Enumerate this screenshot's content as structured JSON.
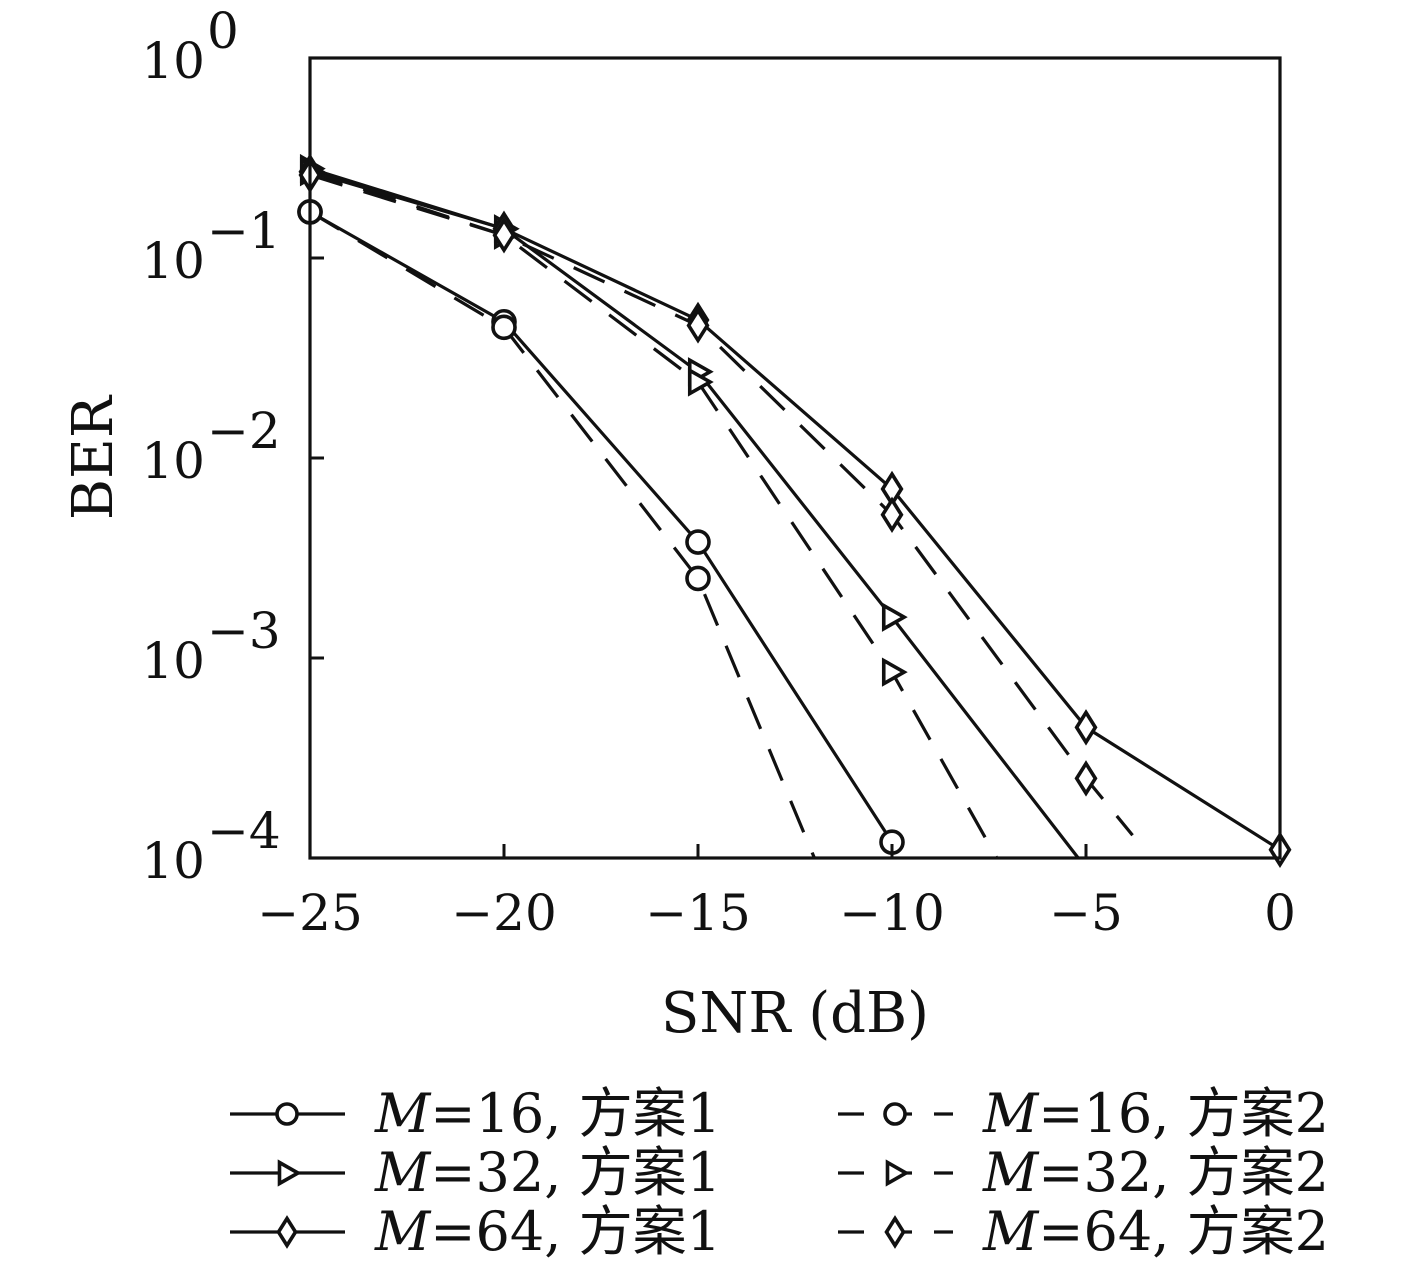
{
  "chart_data": {
    "type": "line",
    "xlabel": "SNR (dB)",
    "ylabel": "BER",
    "xlim": [
      -25,
      0
    ],
    "ylim": [
      0.0001,
      1
    ],
    "yscale": "log",
    "x_ticks": [
      {
        "value": -25,
        "label": "−25"
      },
      {
        "value": -20,
        "label": "−20"
      },
      {
        "value": -15,
        "label": "−15"
      },
      {
        "value": -10,
        "label": "−10"
      },
      {
        "value": -5,
        "label": "−5"
      },
      {
        "value": 0,
        "label": "0"
      }
    ],
    "y_ticks": [
      {
        "value": 1,
        "base": "10",
        "exp": "0"
      },
      {
        "value": 0.1,
        "base": "10",
        "exp": "−1"
      },
      {
        "value": 0.01,
        "base": "10",
        "exp": "−2"
      },
      {
        "value": 0.001,
        "base": "10",
        "exp": "−3"
      },
      {
        "value": 0.0001,
        "base": "10",
        "exp": "−4"
      }
    ],
    "grid": false,
    "legend_position": "bottom",
    "series": [
      {
        "name": "M=16, 方案1",
        "m": "16",
        "scheme": "方案1",
        "marker": "circle",
        "dash": "solid",
        "x": [
          -25,
          -20,
          -15,
          -10
        ],
        "y": [
          0.17,
          0.048,
          0.0038,
          0.00012
        ],
        "tail": {
          "x": -10,
          "y": 0.00012
        }
      },
      {
        "name": "M=16, 方案2",
        "m": "16",
        "scheme": "方案2",
        "marker": "circle",
        "dash": "dashed",
        "x": [
          -25,
          -20,
          -15
        ],
        "y": [
          0.17,
          0.045,
          0.0025
        ],
        "tail": {
          "x": -12,
          "y": 0.0001
        }
      },
      {
        "name": "M=32, 方案1",
        "m": "32",
        "scheme": "方案1",
        "marker": "triangle-right",
        "dash": "solid",
        "x": [
          -25,
          -20,
          -15,
          -10
        ],
        "y": [
          0.28,
          0.14,
          0.027,
          0.0016
        ],
        "tail": {
          "x": -5.2,
          "y": 0.0001
        }
      },
      {
        "name": "M=32, 方案2",
        "m": "32",
        "scheme": "方案2",
        "marker": "triangle-right",
        "dash": "dashed",
        "x": [
          -25,
          -20,
          -15,
          -10
        ],
        "y": [
          0.27,
          0.13,
          0.024,
          0.00085
        ],
        "tail": {
          "x": -7.3,
          "y": 0.0001
        }
      },
      {
        "name": "M=64, 方案1",
        "m": "64",
        "scheme": "方案1",
        "marker": "diamond",
        "dash": "solid",
        "x": [
          -25,
          -20,
          -15,
          -10,
          -5,
          0
        ],
        "y": [
          0.27,
          0.14,
          0.049,
          0.007,
          0.00045,
          0.00011
        ],
        "tail": {
          "x": 0,
          "y": 0.00011
        }
      },
      {
        "name": "M=64, 方案2",
        "m": "64",
        "scheme": "方案2",
        "marker": "diamond",
        "dash": "dashed",
        "x": [
          -25,
          -20,
          -15,
          -10,
          -5
        ],
        "y": [
          0.26,
          0.13,
          0.046,
          0.0052,
          0.00025
        ],
        "tail": {
          "x": -3.8,
          "y": 0.00013
        }
      }
    ]
  }
}
